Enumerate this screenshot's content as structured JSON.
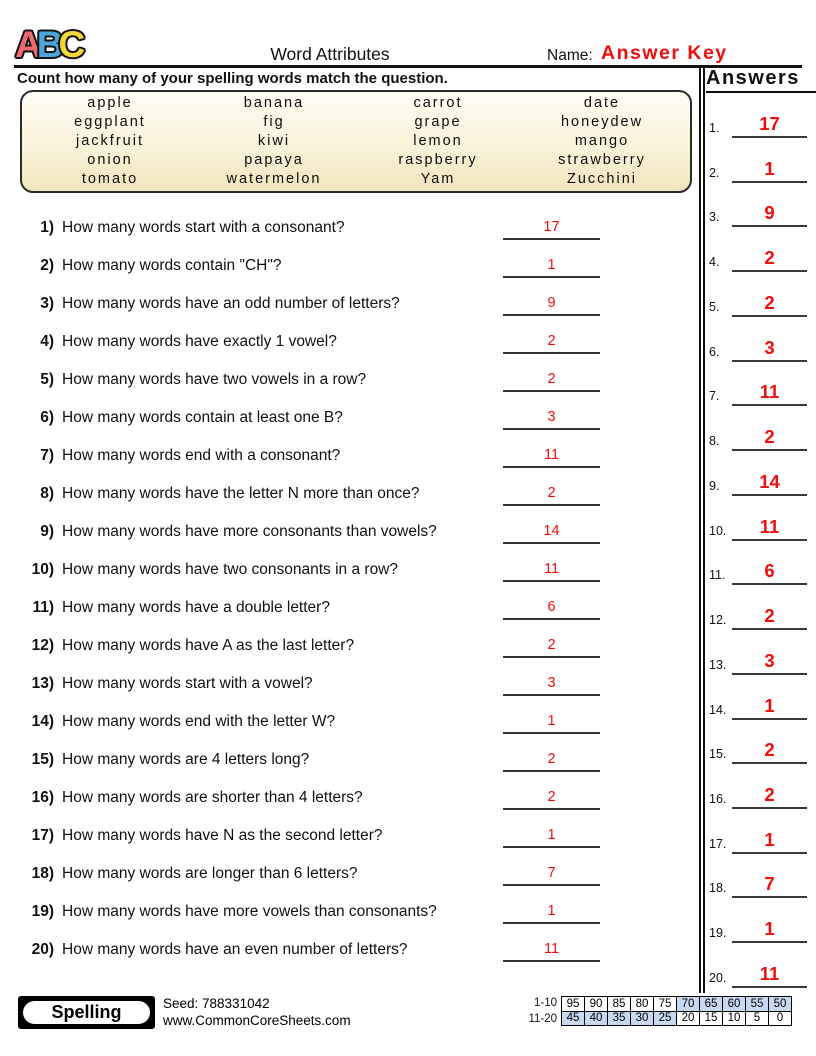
{
  "header": {
    "logo_letters": [
      {
        "char": "A",
        "color": "#ee6a70"
      },
      {
        "char": "B",
        "color": "#4aa7da"
      },
      {
        "char": "C",
        "color": "#f3d838"
      }
    ],
    "title": "Word Attributes",
    "name_label": "Name:",
    "name_value": "Answer Key",
    "name_value_color": "#f20d0d"
  },
  "instruction": "Count how many of your spelling words match the question.",
  "word_bank": {
    "rows": [
      [
        "apple",
        "banana",
        "carrot",
        "date"
      ],
      [
        "eggplant",
        "fig",
        "grape",
        "honeydew"
      ],
      [
        "jackfruit",
        "kiwi",
        "lemon",
        "mango"
      ],
      [
        "onion",
        "papaya",
        "raspberry",
        "strawberry"
      ],
      [
        "tomato",
        "watermelon",
        "Yam",
        "Zucchini"
      ]
    ]
  },
  "questions": [
    {
      "num": "1)",
      "text": "How many words start with a consonant?",
      "answer": "17"
    },
    {
      "num": "2)",
      "text": "How many words contain \"CH\"?",
      "answer": "1"
    },
    {
      "num": "3)",
      "text": "How many words have an odd number of letters?",
      "answer": "9"
    },
    {
      "num": "4)",
      "text": "How many words have exactly 1 vowel?",
      "answer": "2"
    },
    {
      "num": "5)",
      "text": "How many words have two vowels in a row?",
      "answer": "2"
    },
    {
      "num": "6)",
      "text": "How many words contain at least one B?",
      "answer": "3"
    },
    {
      "num": "7)",
      "text": "How many words end with a consonant?",
      "answer": "11"
    },
    {
      "num": "8)",
      "text": "How many words have the letter N more than once?",
      "answer": "2"
    },
    {
      "num": "9)",
      "text": "How many words have more consonants than vowels?",
      "answer": "14"
    },
    {
      "num": "10)",
      "text": "How many words have two consonants in a row?",
      "answer": "11"
    },
    {
      "num": "11)",
      "text": "How many words have a double letter?",
      "answer": "6"
    },
    {
      "num": "12)",
      "text": "How many words have A as the last letter?",
      "answer": "2"
    },
    {
      "num": "13)",
      "text": "How many words start with a vowel?",
      "answer": "3"
    },
    {
      "num": "14)",
      "text": "How many words end with the letter W?",
      "answer": "1"
    },
    {
      "num": "15)",
      "text": "How many words are 4 letters long?",
      "answer": "2"
    },
    {
      "num": "16)",
      "text": "How many words are shorter than 4 letters?",
      "answer": "2"
    },
    {
      "num": "17)",
      "text": "How many words have N as the second letter?",
      "answer": "1"
    },
    {
      "num": "18)",
      "text": "How many words are longer than 6 letters?",
      "answer": "7"
    },
    {
      "num": "19)",
      "text": "How many words have more vowels than consonants?",
      "answer": "1"
    },
    {
      "num": "20)",
      "text": "How many words have an even number of letters?",
      "answer": "11"
    }
  ],
  "answers_panel": {
    "title": "Answers",
    "items": [
      {
        "num": "1.",
        "value": "17"
      },
      {
        "num": "2.",
        "value": "1"
      },
      {
        "num": "3.",
        "value": "9"
      },
      {
        "num": "4.",
        "value": "2"
      },
      {
        "num": "5.",
        "value": "2"
      },
      {
        "num": "6.",
        "value": "3"
      },
      {
        "num": "7.",
        "value": "11"
      },
      {
        "num": "8.",
        "value": "2"
      },
      {
        "num": "9.",
        "value": "14"
      },
      {
        "num": "10.",
        "value": "11"
      },
      {
        "num": "11.",
        "value": "6"
      },
      {
        "num": "12.",
        "value": "2"
      },
      {
        "num": "13.",
        "value": "3"
      },
      {
        "num": "14.",
        "value": "1"
      },
      {
        "num": "15.",
        "value": "2"
      },
      {
        "num": "16.",
        "value": "2"
      },
      {
        "num": "17.",
        "value": "1"
      },
      {
        "num": "18.",
        "value": "7"
      },
      {
        "num": "19.",
        "value": "1"
      },
      {
        "num": "20.",
        "value": "11"
      }
    ]
  },
  "footer": {
    "badge": "Spelling",
    "seed": "Seed: 788331042",
    "site": "www.CommonCoreSheets.com",
    "score_table": {
      "row1_label": "1-10",
      "row2_label": "11-20",
      "row1": [
        "95",
        "90",
        "85",
        "80",
        "75",
        "70",
        "65",
        "60",
        "55",
        "50"
      ],
      "row2": [
        "45",
        "40",
        "35",
        "30",
        "25",
        "20",
        "15",
        "10",
        "5",
        "0"
      ],
      "row1_highlight": [
        false,
        false,
        false,
        false,
        false,
        true,
        true,
        true,
        true,
        true
      ],
      "row2_highlight": [
        true,
        true,
        true,
        true,
        true,
        false,
        false,
        false,
        false,
        false
      ],
      "highlight_color": "#c6d9f1"
    }
  },
  "colors": {
    "answer_red": "#f20d0d"
  }
}
